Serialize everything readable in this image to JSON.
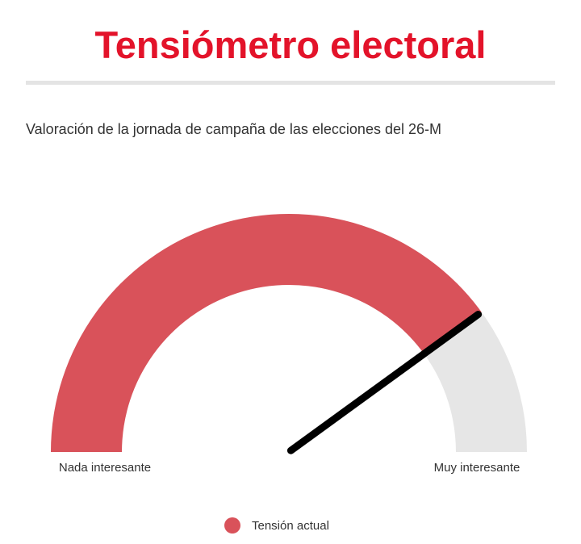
{
  "header": {
    "title": "Tensiómetro electoral"
  },
  "colors": {
    "title": "#e3132a",
    "filled": "#d9525a",
    "track": "#e6e6e6",
    "needle": "#000000",
    "divider": "#e4e4e4",
    "text": "#333333"
  },
  "chart_data": {
    "type": "gauge",
    "subtitle": "Valoración de la jornada de campaña de las elecciones del 26-M",
    "min_label": "Nada interesante",
    "max_label": "Muy interesante",
    "min": 0,
    "max": 100,
    "value": 80,
    "series": [
      {
        "name": "Tensión actual",
        "value": 80,
        "color": "#d9525a"
      }
    ],
    "legend_position": "bottom-center"
  }
}
